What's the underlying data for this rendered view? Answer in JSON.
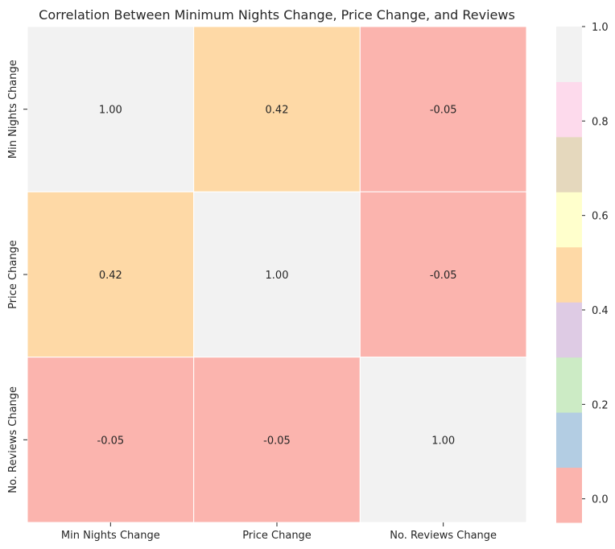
{
  "chart_data": {
    "type": "heatmap",
    "title": "Correlation Between Minimum Nights Change, Price Change, and Reviews",
    "x_labels": [
      "Min Nights Change",
      "Price Change",
      "No. Reviews Change"
    ],
    "y_labels": [
      "Min Nights Change",
      "Price Change",
      "No. Reviews Change"
    ],
    "values": [
      [
        1.0,
        0.42,
        -0.05
      ],
      [
        0.42,
        1.0,
        -0.05
      ],
      [
        -0.05,
        -0.05,
        1.0
      ]
    ],
    "value_format": "0.00",
    "colormap": "Pastel1",
    "colorbar": {
      "vmin": -0.05,
      "vmax": 1.0,
      "ticks": [
        0.0,
        0.2,
        0.4,
        0.6,
        0.8,
        1.0
      ],
      "tick_labels": [
        "0.0",
        "0.2",
        "0.4",
        "0.6",
        "0.8",
        "1.0"
      ],
      "bands": [
        "#fbb4ae",
        "#b3cde3",
        "#ccebc5",
        "#decbe4",
        "#fed9a6",
        "#ffffcc",
        "#e5d8bd",
        "#fddaec",
        "#f2f2f2"
      ]
    },
    "grid_line_color": "#ffffff"
  }
}
